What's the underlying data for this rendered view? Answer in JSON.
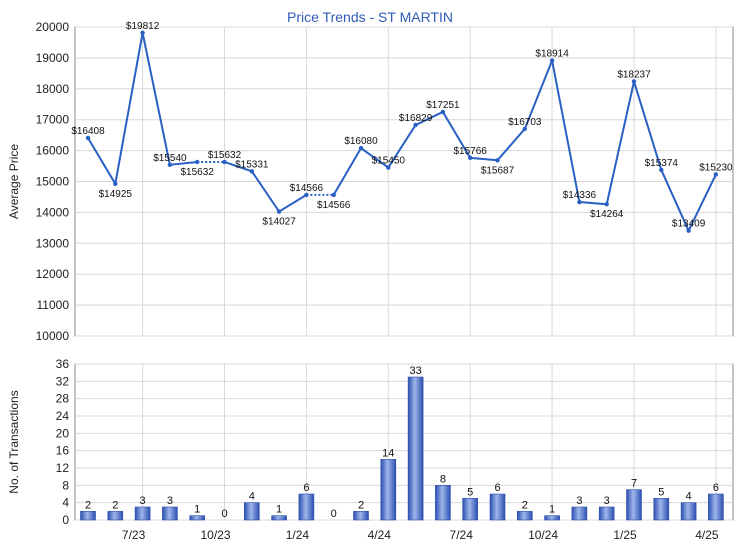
{
  "title": "Price Trends - ST MARTIN",
  "colors": {
    "title": "#2f5bb7",
    "line": "#2a5fc4",
    "bar_dark": "#2b4fb0",
    "bar_light": "#9fb6ea",
    "grid": "#d8d8d8",
    "axis": "#888888"
  },
  "chart_data": [
    {
      "type": "line",
      "title": "Price Trends - ST MARTIN",
      "ylabel": "Average Price",
      "ylim": [
        10000,
        20000
      ],
      "yticks": [
        10000,
        11000,
        12000,
        13000,
        14000,
        15000,
        16000,
        17000,
        18000,
        19000,
        20000
      ],
      "grid": true,
      "series": [
        {
          "values": [
            16408,
            14925,
            19812,
            15540,
            15632,
            15632,
            15331,
            14027,
            14566,
            14566,
            16080,
            15450,
            16829,
            17251,
            15766,
            15687,
            16703,
            18914,
            14336,
            14264,
            18237,
            15374,
            13409,
            15230
          ],
          "labels": [
            "$16408",
            "$14925",
            "$19812",
            "$15540",
            "$15632",
            "$15632",
            "$15331",
            "$14027",
            "$14566",
            "$14566",
            "$16080",
            "$15450",
            "$16829",
            "$17251",
            "$15766",
            "$15687",
            "$16703",
            "$18914",
            "$14336",
            "$14264",
            "$18237",
            "$15374",
            "$13409",
            "$15230"
          ],
          "dotted_segments": [
            [
              4,
              5
            ],
            [
              8,
              9
            ]
          ]
        }
      ]
    },
    {
      "type": "bar",
      "ylabel": "No. of Transactions",
      "ylim": [
        0,
        36
      ],
      "yticks": [
        0,
        4,
        8,
        12,
        16,
        20,
        24,
        28,
        32,
        36
      ],
      "grid": true,
      "x_ticks": [
        "7/23",
        "10/23",
        "1/24",
        "4/24",
        "7/24",
        "10/24",
        "1/25",
        "4/25"
      ],
      "values": [
        2,
        2,
        3,
        3,
        1,
        0,
        4,
        1,
        6,
        0,
        2,
        14,
        33,
        8,
        5,
        6,
        2,
        1,
        3,
        3,
        7,
        5,
        4,
        6
      ]
    }
  ]
}
